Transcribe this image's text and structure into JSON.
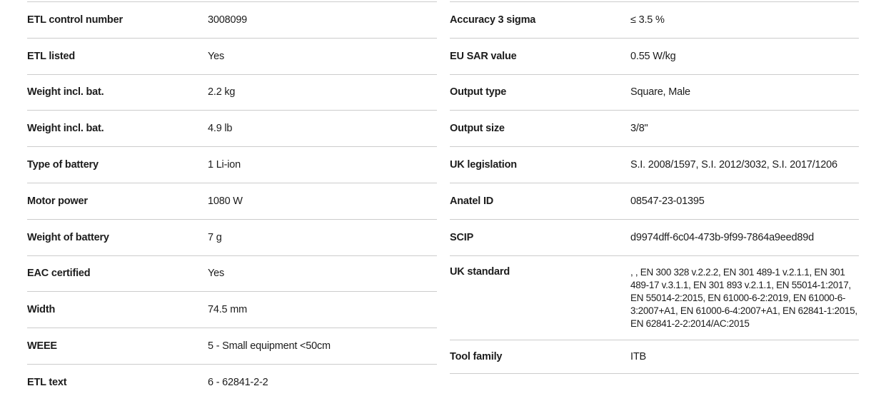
{
  "style": {
    "text_color": "#1c1c1c",
    "divider_color": "#cccccc",
    "background_color": "#ffffff"
  },
  "left_column": {
    "rows": [
      {
        "label": "ETL control number",
        "value": "3008099"
      },
      {
        "label": "ETL listed",
        "value": "Yes"
      },
      {
        "label": "Weight incl. bat.",
        "value": "2.2 kg"
      },
      {
        "label": "Weight incl. bat.",
        "value": "4.9 lb"
      },
      {
        "label": "Type of battery",
        "value": "1 Li-ion"
      },
      {
        "label": "Motor power",
        "value": "1080 W"
      },
      {
        "label": "Weight of battery",
        "value": "7 g"
      },
      {
        "label": "EAC certified",
        "value": "Yes"
      },
      {
        "label": "Width",
        "value": "74.5 mm"
      },
      {
        "label": "WEEE",
        "value": "5 - Small equipment <50cm"
      },
      {
        "label": "ETL text",
        "value": "6 - 62841-2-2"
      }
    ]
  },
  "right_column": {
    "rows": [
      {
        "label": "Accuracy 3 sigma",
        "value": "≤ 3.5 %"
      },
      {
        "label": "EU SAR value",
        "value": "0.55 W/kg"
      },
      {
        "label": "Output type",
        "value": "Square, Male"
      },
      {
        "label": "Output size",
        "value": "3/8\""
      },
      {
        "label": "UK legislation",
        "value": "S.I. 2008/1597, S.I. 2012/3032, S.I. 2017/1206"
      },
      {
        "label": "Anatel ID",
        "value": "08547-23-01395"
      },
      {
        "label": "SCIP",
        "value": "d9974dff-6c04-473b-9f99-7864a9eed89d"
      },
      {
        "label": "UK standard",
        "value": ", , EN 300 328 v.2.2.2, EN 301 489-1 v.2.1.1, EN 301 489-17 v.3.1.1, EN 301 893 v.2.1.1, EN 55014-1:2017, EN 55014-2:2015, EN 61000-6-2:2019, EN 61000-6-3:2007+A1, EN 61000-6-4:2007+A1, EN 62841-1:2015, EN 62841-2-2:2014/AC:2015"
      },
      {
        "label": "Tool family",
        "value": "ITB"
      }
    ]
  }
}
